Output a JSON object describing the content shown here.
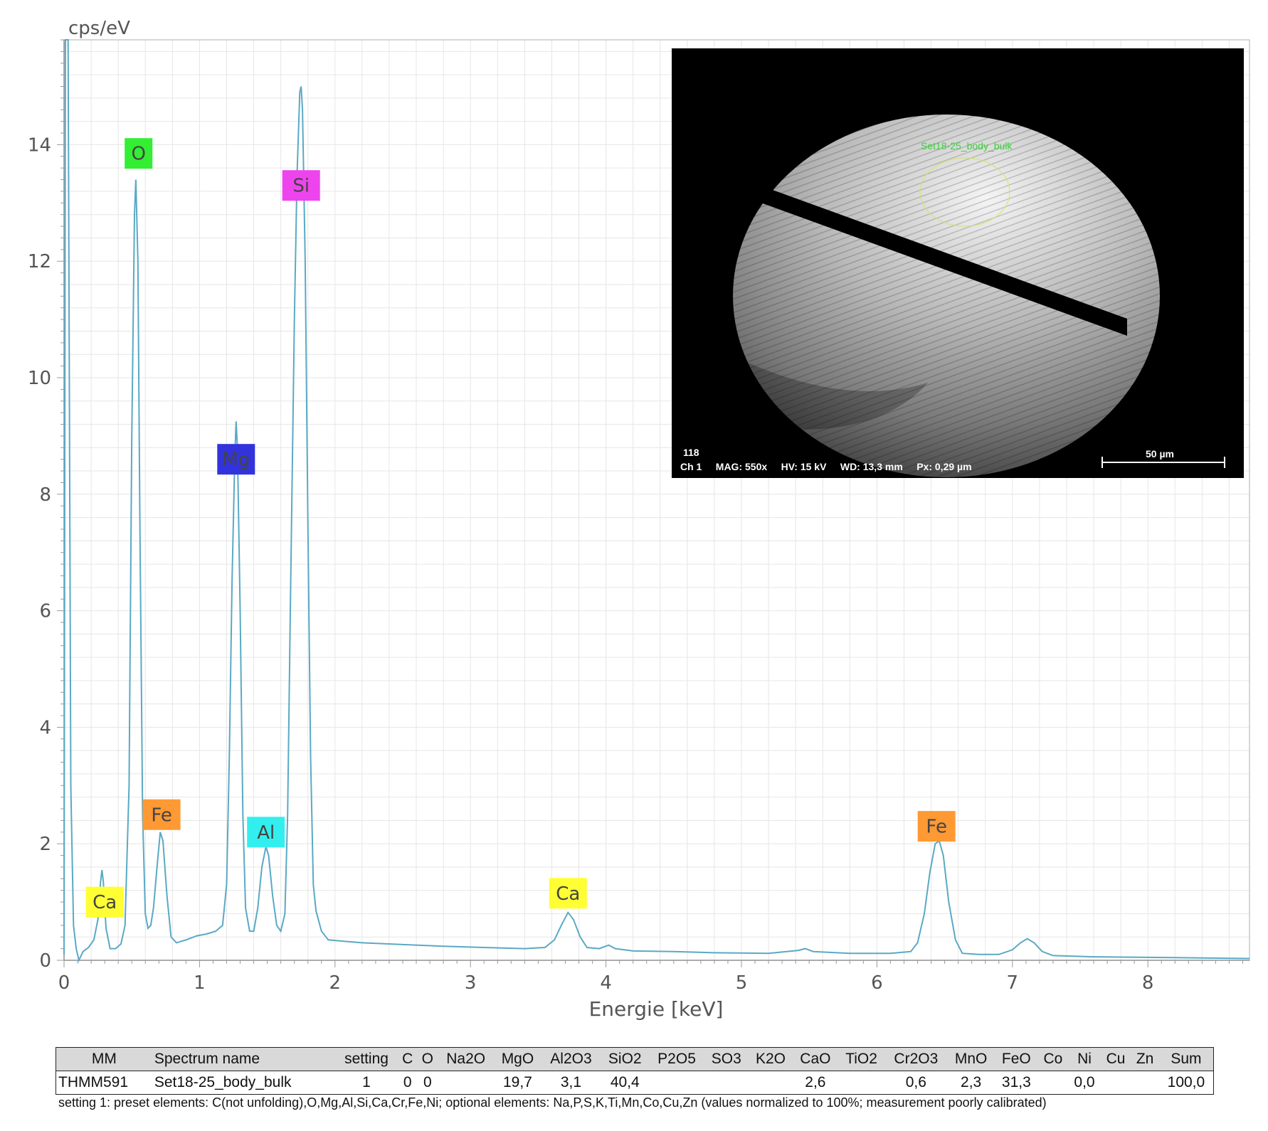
{
  "chart_data": {
    "type": "line",
    "ylabel": "cps/eV",
    "xlabel": "Energie [keV]",
    "xlim": [
      0,
      8.75
    ],
    "ylim": [
      0,
      15.8
    ],
    "x_ticks": [
      0,
      1,
      2,
      3,
      4,
      5,
      6,
      7,
      8
    ],
    "y_ticks": [
      0,
      2,
      4,
      6,
      8,
      10,
      12,
      14
    ],
    "grid": true,
    "line_color": "#5aa9c4",
    "peak_labels": [
      {
        "text": "Ca",
        "x": 0.3,
        "y": 1.0,
        "color": "#ffff33"
      },
      {
        "text": "O",
        "x": 0.55,
        "y": 13.85,
        "color": "#33ee33"
      },
      {
        "text": "Fe",
        "x": 0.72,
        "y": 2.5,
        "color": "#ff9933"
      },
      {
        "text": "Mg",
        "x": 1.27,
        "y": 8.6,
        "color": "#3333dd"
      },
      {
        "text": "Al",
        "x": 1.49,
        "y": 2.2,
        "color": "#33eeee"
      },
      {
        "text": "Si",
        "x": 1.75,
        "y": 13.3,
        "color": "#ee44ee"
      },
      {
        "text": "Ca",
        "x": 3.72,
        "y": 1.15,
        "color": "#ffff33"
      },
      {
        "text": "Fe",
        "x": 6.44,
        "y": 2.3,
        "color": "#ff9933"
      }
    ],
    "spectrum": [
      [
        0.0,
        0.1
      ],
      [
        0.01,
        15.8
      ],
      [
        0.03,
        15.8
      ],
      [
        0.05,
        3.0
      ],
      [
        0.07,
        0.6
      ],
      [
        0.09,
        0.2
      ],
      [
        0.11,
        0.0
      ],
      [
        0.14,
        0.15
      ],
      [
        0.18,
        0.22
      ],
      [
        0.22,
        0.35
      ],
      [
        0.25,
        0.7
      ],
      [
        0.27,
        1.35
      ],
      [
        0.28,
        1.55
      ],
      [
        0.29,
        1.35
      ],
      [
        0.31,
        0.55
      ],
      [
        0.34,
        0.2
      ],
      [
        0.38,
        0.2
      ],
      [
        0.42,
        0.28
      ],
      [
        0.45,
        0.6
      ],
      [
        0.48,
        3.0
      ],
      [
        0.5,
        9.0
      ],
      [
        0.52,
        12.8
      ],
      [
        0.53,
        13.4
      ],
      [
        0.545,
        12.0
      ],
      [
        0.56,
        7.5
      ],
      [
        0.58,
        2.5
      ],
      [
        0.6,
        0.8
      ],
      [
        0.62,
        0.55
      ],
      [
        0.64,
        0.6
      ],
      [
        0.66,
        0.9
      ],
      [
        0.69,
        1.7
      ],
      [
        0.71,
        2.2
      ],
      [
        0.73,
        2.05
      ],
      [
        0.76,
        1.1
      ],
      [
        0.79,
        0.4
      ],
      [
        0.83,
        0.3
      ],
      [
        0.9,
        0.35
      ],
      [
        0.98,
        0.42
      ],
      [
        1.05,
        0.45
      ],
      [
        1.12,
        0.5
      ],
      [
        1.17,
        0.6
      ],
      [
        1.2,
        1.3
      ],
      [
        1.22,
        3.5
      ],
      [
        1.24,
        6.5
      ],
      [
        1.26,
        8.6
      ],
      [
        1.27,
        9.25
      ],
      [
        1.28,
        8.8
      ],
      [
        1.3,
        6.0
      ],
      [
        1.32,
        2.5
      ],
      [
        1.34,
        0.9
      ],
      [
        1.37,
        0.5
      ],
      [
        1.4,
        0.5
      ],
      [
        1.43,
        0.9
      ],
      [
        1.46,
        1.6
      ],
      [
        1.49,
        1.95
      ],
      [
        1.51,
        1.8
      ],
      [
        1.54,
        1.1
      ],
      [
        1.57,
        0.6
      ],
      [
        1.6,
        0.5
      ],
      [
        1.63,
        0.8
      ],
      [
        1.65,
        2.5
      ],
      [
        1.67,
        6.0
      ],
      [
        1.7,
        11.0
      ],
      [
        1.72,
        13.5
      ],
      [
        1.74,
        14.9
      ],
      [
        1.75,
        15.0
      ],
      [
        1.76,
        14.6
      ],
      [
        1.78,
        12.0
      ],
      [
        1.8,
        7.5
      ],
      [
        1.82,
        3.5
      ],
      [
        1.84,
        1.3
      ],
      [
        1.86,
        0.85
      ],
      [
        1.9,
        0.5
      ],
      [
        1.95,
        0.35
      ],
      [
        2.05,
        0.33
      ],
      [
        2.2,
        0.3
      ],
      [
        2.5,
        0.27
      ],
      [
        2.8,
        0.24
      ],
      [
        3.1,
        0.22
      ],
      [
        3.4,
        0.2
      ],
      [
        3.55,
        0.22
      ],
      [
        3.62,
        0.35
      ],
      [
        3.67,
        0.6
      ],
      [
        3.72,
        0.82
      ],
      [
        3.76,
        0.7
      ],
      [
        3.81,
        0.4
      ],
      [
        3.86,
        0.22
      ],
      [
        3.95,
        0.2
      ],
      [
        4.02,
        0.26
      ],
      [
        4.07,
        0.2
      ],
      [
        4.2,
        0.16
      ],
      [
        4.5,
        0.15
      ],
      [
        4.8,
        0.13
      ],
      [
        5.2,
        0.12
      ],
      [
        5.42,
        0.17
      ],
      [
        5.47,
        0.2
      ],
      [
        5.53,
        0.15
      ],
      [
        5.8,
        0.12
      ],
      [
        6.1,
        0.12
      ],
      [
        6.25,
        0.15
      ],
      [
        6.3,
        0.3
      ],
      [
        6.35,
        0.8
      ],
      [
        6.39,
        1.5
      ],
      [
        6.43,
        2.0
      ],
      [
        6.46,
        2.05
      ],
      [
        6.49,
        1.8
      ],
      [
        6.53,
        1.0
      ],
      [
        6.58,
        0.35
      ],
      [
        6.63,
        0.12
      ],
      [
        6.75,
        0.1
      ],
      [
        6.9,
        0.1
      ],
      [
        7.0,
        0.18
      ],
      [
        7.06,
        0.3
      ],
      [
        7.11,
        0.37
      ],
      [
        7.16,
        0.3
      ],
      [
        7.22,
        0.15
      ],
      [
        7.3,
        0.08
      ],
      [
        7.6,
        0.06
      ],
      [
        8.0,
        0.05
      ],
      [
        8.4,
        0.04
      ],
      [
        8.75,
        0.03
      ]
    ]
  },
  "sem_image": {
    "roi_label": "Set18-25_body_bulk",
    "info_line1": "118",
    "info_line2": "Ch 1     MAG: 550x     HV: 15 kV     WD: 13,3 mm     Px: 0,29 µm",
    "scalebar_label": "50 µm"
  },
  "table": {
    "headers": [
      "MM",
      "Spectrum name",
      "setting",
      "C",
      "O",
      "Na2O",
      "MgO",
      "Al2O3",
      "SiO2",
      "P2O5",
      "SO3",
      "K2O",
      "CaO",
      "TiO2",
      "Cr2O3",
      "MnO",
      "FeO",
      "Co",
      "Ni",
      "Cu",
      "Zn",
      "Sum"
    ],
    "rows": [
      [
        "THMM591",
        "Set18-25_body_bulk",
        "1",
        "0",
        "0",
        "",
        "19,7",
        "3,1",
        "40,4",
        "",
        "",
        "",
        "2,6",
        "",
        "0,6",
        "2,3",
        "31,3",
        "",
        "0,0",
        "",
        "",
        "100,0"
      ]
    ]
  },
  "footnote": "setting 1: preset elements: C(not unfolding),O,Mg,Al,Si,Ca,Cr,Fe,Ni; optional elements: Na,P,S,K,Ti,Mn,Co,Cu,Zn (values normalized to 100%; measurement poorly calibrated)"
}
